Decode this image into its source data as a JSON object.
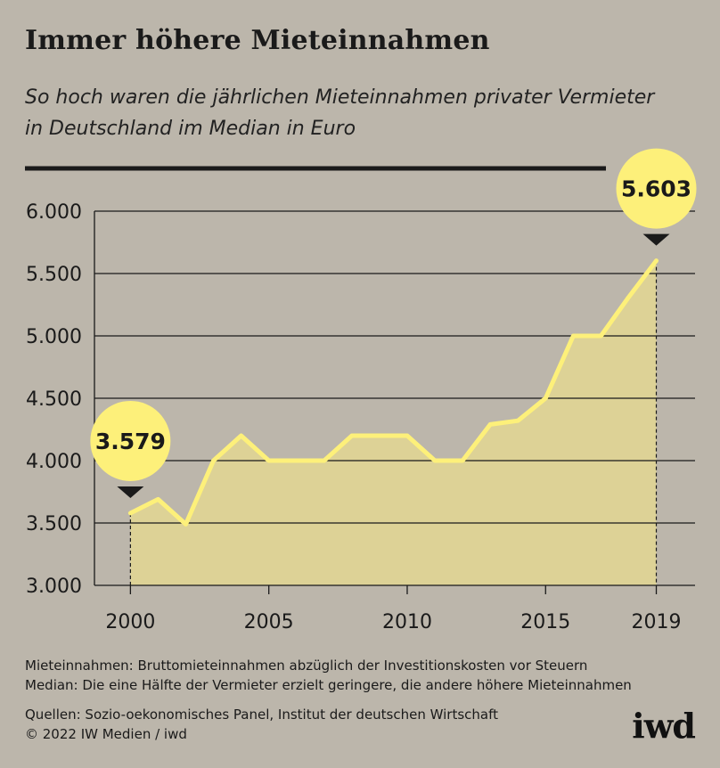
{
  "title": "Immer höhere Mieteinnahmen",
  "subtitle": "So hoch waren die jährlichen Mieteinnahmen privater Vermieter in Deutschland im Median in Euro",
  "chart_data": {
    "type": "area",
    "x": [
      2000,
      2001,
      2002,
      2003,
      2004,
      2005,
      2006,
      2007,
      2008,
      2009,
      2010,
      2011,
      2012,
      2013,
      2014,
      2015,
      2016,
      2017,
      2018,
      2019
    ],
    "values": [
      3579,
      3690,
      3490,
      4000,
      4200,
      4000,
      4000,
      4000,
      4200,
      4200,
      4200,
      4000,
      4000,
      4290,
      4320,
      4500,
      5000,
      5000,
      5310,
      5603
    ],
    "ylim": [
      3000,
      6000
    ],
    "yticks": [
      3000,
      3500,
      4000,
      4500,
      5000,
      5500,
      6000
    ],
    "ytick_labels": [
      "3.000",
      "3.500",
      "4.000",
      "4.500",
      "5.000",
      "5.500",
      "6.000"
    ],
    "xticks": [
      2000,
      2005,
      2010,
      2015,
      2019
    ],
    "xtick_labels": [
      "2000",
      "2005",
      "2010",
      "2015",
      "2019"
    ],
    "grid": true,
    "annotations": [
      {
        "x": 2000,
        "value": 3579,
        "label": "3.579"
      },
      {
        "x": 2019,
        "value": 5603,
        "label": "5.603"
      }
    ],
    "colors": {
      "line": "#fdf07a",
      "fill": "#ddd296",
      "callout": "#fdf07a",
      "grid": "#1a1a1a"
    }
  },
  "notes": [
    "Mieteinnahmen: Bruttomieteinnahmen abzüglich der Investitionskosten vor Steuern",
    "Median: Die eine Hälfte der Vermieter erzielt geringere, die andere höhere Mieteinnahmen"
  ],
  "sources": [
    "Quellen: Sozio-oekonomisches Panel, Institut der deutschen Wirtschaft",
    "© 2022 IW Medien / iwd"
  ],
  "logo": "iwd"
}
